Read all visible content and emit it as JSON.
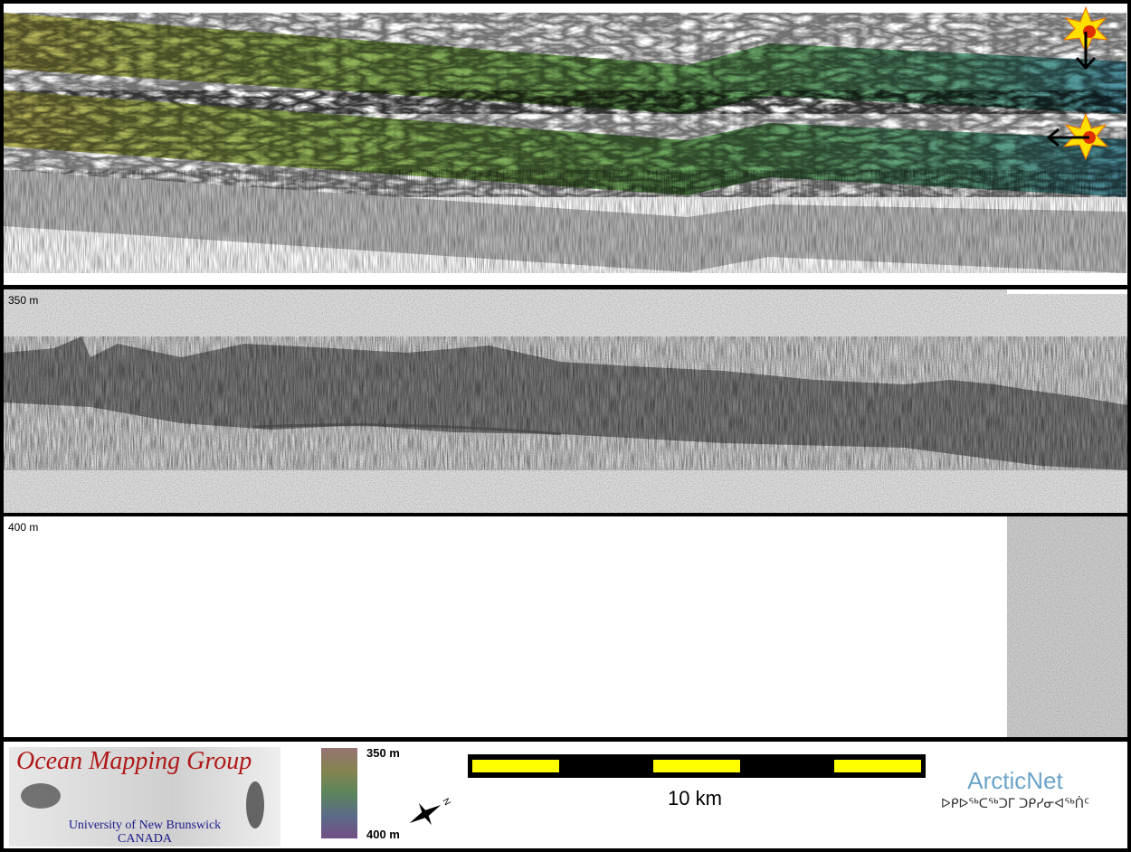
{
  "profile": {
    "top_depth_label": "350 m",
    "bottom_depth_label": "400 m"
  },
  "footer": {
    "logo_title": "Ocean Mapping Group",
    "logo_university": "University of New Brunswick",
    "logo_country": "CANADA",
    "colorbar_top": "350 m",
    "colorbar_bottom": "400 m",
    "scale_label": "10 km",
    "partner_name": "ArcticNet",
    "partner_subtitle": "ᐅᑭᐅᖅᑕᖅᑐᒥ ᑐᑭᓯᓂᐊᖅᑏᑦ"
  }
}
